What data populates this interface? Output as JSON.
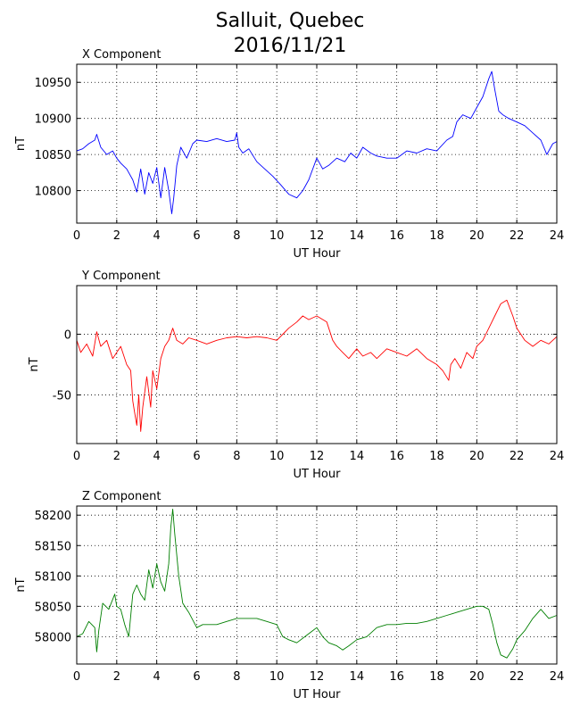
{
  "title_line1": "Salluit, Quebec",
  "title_line2": "2016/11/21",
  "chart_data": [
    {
      "type": "line",
      "title": "X Component",
      "xlabel": "UT Hour",
      "ylabel": "nT",
      "xlim": [
        0,
        24
      ],
      "ylim": [
        10755,
        10975
      ],
      "xticks": [
        0,
        2,
        4,
        6,
        8,
        10,
        12,
        14,
        16,
        18,
        20,
        22,
        24
      ],
      "yticks": [
        10800,
        10850,
        10900,
        10950
      ],
      "grid": true,
      "color": "#0000ff",
      "series": [
        {
          "x": [
            0,
            0.3,
            0.6,
            0.9,
            1.0,
            1.2,
            1.5,
            1.8,
            2.0,
            2.2,
            2.5,
            2.8,
            3.0,
            3.2,
            3.4,
            3.6,
            3.8,
            4.0,
            4.2,
            4.4,
            4.6,
            4.75,
            4.85,
            5.0,
            5.2,
            5.5,
            5.8,
            6.0,
            6.5,
            7.0,
            7.5,
            7.9,
            8.0,
            8.1,
            8.3,
            8.6,
            9.0,
            9.4,
            9.8,
            10.2,
            10.6,
            11.0,
            11.3,
            11.6,
            12.0,
            12.3,
            12.6,
            13.0,
            13.4,
            13.7,
            14.0,
            14.3,
            14.7,
            15.0,
            15.5,
            16.0,
            16.5,
            17.0,
            17.5,
            18.0,
            18.5,
            18.8,
            19.0,
            19.3,
            19.7,
            20.0,
            20.3,
            20.6,
            20.75,
            20.9,
            21.1,
            21.3,
            21.6,
            22.0,
            22.4,
            22.8,
            23.2,
            23.5,
            23.8,
            24.0
          ],
          "y": [
            10855,
            10858,
            10865,
            10870,
            10878,
            10860,
            10850,
            10855,
            10845,
            10838,
            10830,
            10815,
            10798,
            10830,
            10795,
            10825,
            10810,
            10832,
            10790,
            10832,
            10800,
            10768,
            10790,
            10835,
            10860,
            10845,
            10865,
            10870,
            10868,
            10872,
            10868,
            10870,
            10880,
            10860,
            10852,
            10858,
            10840,
            10830,
            10820,
            10808,
            10795,
            10790,
            10800,
            10815,
            10845,
            10830,
            10835,
            10845,
            10840,
            10852,
            10845,
            10860,
            10852,
            10848,
            10845,
            10845,
            10855,
            10852,
            10858,
            10855,
            10870,
            10875,
            10895,
            10905,
            10900,
            10915,
            10930,
            10955,
            10965,
            10940,
            10910,
            10905,
            10900,
            10895,
            10890,
            10880,
            10870,
            10850,
            10865,
            10868
          ]
        }
      ]
    },
    {
      "type": "line",
      "title": "Y Component",
      "xlabel": "UT Hour",
      "ylabel": "nT",
      "xlim": [
        0,
        24
      ],
      "ylim": [
        -90,
        40
      ],
      "xticks": [
        0,
        2,
        4,
        6,
        8,
        10,
        12,
        14,
        16,
        18,
        20,
        22,
        24
      ],
      "yticks": [
        -50,
        0
      ],
      "grid": true,
      "color": "#ff0000",
      "series": [
        {
          "x": [
            0,
            0.2,
            0.5,
            0.8,
            1.0,
            1.2,
            1.5,
            1.8,
            2.0,
            2.2,
            2.5,
            2.7,
            2.8,
            2.9,
            3.0,
            3.1,
            3.2,
            3.3,
            3.5,
            3.7,
            3.8,
            4.0,
            4.2,
            4.4,
            4.6,
            4.8,
            5.0,
            5.3,
            5.6,
            6.0,
            6.5,
            7.0,
            7.5,
            8.0,
            8.5,
            9.0,
            9.5,
            10.0,
            10.3,
            10.6,
            11.0,
            11.3,
            11.6,
            12.0,
            12.2,
            12.5,
            12.8,
            13.0,
            13.3,
            13.6,
            14.0,
            14.3,
            14.7,
            15.0,
            15.5,
            16.0,
            16.5,
            17.0,
            17.5,
            18.0,
            18.3,
            18.6,
            18.7,
            18.9,
            19.2,
            19.5,
            19.8,
            20.0,
            20.3,
            20.6,
            20.9,
            21.2,
            21.5,
            21.8,
            22.0,
            22.4,
            22.8,
            23.2,
            23.6,
            24.0
          ],
          "y": [
            -5,
            -15,
            -8,
            -18,
            2,
            -10,
            -5,
            -20,
            -15,
            -10,
            -25,
            -30,
            -55,
            -65,
            -75,
            -50,
            -80,
            -60,
            -35,
            -60,
            -30,
            -45,
            -20,
            -10,
            -5,
            5,
            -5,
            -8,
            -3,
            -5,
            -8,
            -5,
            -3,
            -2,
            -3,
            -2,
            -3,
            -5,
            0,
            5,
            10,
            15,
            12,
            15,
            13,
            10,
            -5,
            -10,
            -15,
            -20,
            -12,
            -18,
            -15,
            -20,
            -12,
            -15,
            -18,
            -12,
            -20,
            -25,
            -30,
            -38,
            -25,
            -20,
            -28,
            -15,
            -20,
            -10,
            -5,
            5,
            15,
            25,
            28,
            15,
            5,
            -5,
            -10,
            -5,
            -8,
            -2
          ]
        }
      ]
    },
    {
      "type": "line",
      "title": "Z Component",
      "xlabel": "UT Hour",
      "ylabel": "nT",
      "xlim": [
        0,
        24
      ],
      "ylim": [
        57955,
        58215
      ],
      "xticks": [
        0,
        2,
        4,
        6,
        8,
        10,
        12,
        14,
        16,
        18,
        20,
        22,
        24
      ],
      "yticks": [
        58000,
        58050,
        58100,
        58150,
        58200
      ],
      "grid": true,
      "color": "#007f00",
      "series": [
        {
          "x": [
            0,
            0.3,
            0.6,
            0.9,
            1.0,
            1.1,
            1.3,
            1.6,
            1.9,
            2.0,
            2.2,
            2.4,
            2.6,
            2.8,
            3.0,
            3.2,
            3.4,
            3.6,
            3.8,
            4.0,
            4.2,
            4.4,
            4.6,
            4.7,
            4.8,
            4.9,
            5.1,
            5.3,
            5.6,
            6.0,
            6.3,
            6.7,
            7.0,
            7.5,
            8.0,
            8.5,
            9.0,
            9.5,
            10.0,
            10.3,
            10.6,
            11.0,
            11.4,
            11.8,
            12.0,
            12.3,
            12.6,
            13.0,
            13.3,
            13.6,
            14.0,
            14.5,
            15.0,
            15.5,
            16.0,
            16.5,
            17.0,
            17.5,
            18.0,
            18.5,
            19.0,
            19.5,
            20.0,
            20.3,
            20.6,
            20.8,
            21.0,
            21.2,
            21.5,
            21.8,
            22.0,
            22.4,
            22.8,
            23.2,
            23.6,
            24.0
          ],
          "y": [
            58000,
            58005,
            58025,
            58015,
            57975,
            58010,
            58055,
            58045,
            58070,
            58050,
            58045,
            58020,
            58000,
            58070,
            58085,
            58070,
            58060,
            58110,
            58080,
            58120,
            58090,
            58075,
            58120,
            58180,
            58210,
            58170,
            58100,
            58055,
            58040,
            58015,
            58020,
            58020,
            58020,
            58025,
            58030,
            58030,
            58030,
            58025,
            58020,
            58000,
            57995,
            57990,
            58000,
            58010,
            58015,
            58000,
            57990,
            57985,
            57978,
            57985,
            57995,
            58000,
            58015,
            58020,
            58020,
            58022,
            58022,
            58025,
            58030,
            58035,
            58040,
            58045,
            58050,
            58050,
            58045,
            58020,
            57990,
            57970,
            57965,
            57980,
            57995,
            58010,
            58030,
            58045,
            58030,
            58035
          ]
        }
      ]
    }
  ]
}
